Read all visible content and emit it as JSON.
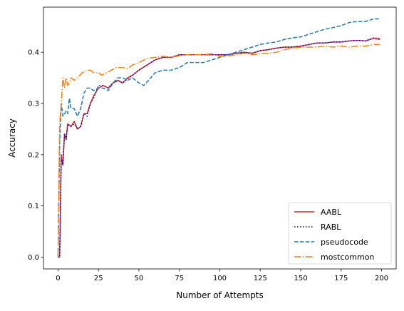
{
  "chart_data": {
    "type": "line",
    "title": "",
    "xlabel": "Number of Attempts",
    "ylabel": "Accuracy",
    "xlim": [
      -9,
      209
    ],
    "ylim": [
      -0.023,
      0.488
    ],
    "x_ticks": [
      0,
      25,
      50,
      75,
      100,
      125,
      150,
      175,
      200
    ],
    "y_ticks": [
      0.0,
      0.1,
      0.2,
      0.3,
      0.4
    ],
    "x_tick_labels": [
      "0",
      "25",
      "50",
      "75",
      "100",
      "125",
      "150",
      "175",
      "200"
    ],
    "y_tick_labels": [
      "0.0",
      "0.1",
      "0.2",
      "0.3",
      "0.4"
    ],
    "grid": false,
    "legend_position": "lower-right",
    "series": [
      {
        "name": "AABL",
        "color": "#d62728",
        "style": "solid",
        "points": [
          [
            0,
            0.0
          ],
          [
            1,
            0.0
          ],
          [
            2,
            0.2
          ],
          [
            3,
            0.18
          ],
          [
            4,
            0.24
          ],
          [
            5,
            0.23
          ],
          [
            6,
            0.26
          ],
          [
            8,
            0.255
          ],
          [
            10,
            0.265
          ],
          [
            12,
            0.25
          ],
          [
            14,
            0.255
          ],
          [
            16,
            0.28
          ],
          [
            18,
            0.28
          ],
          [
            20,
            0.3
          ],
          [
            22,
            0.315
          ],
          [
            25,
            0.33
          ],
          [
            28,
            0.335
          ],
          [
            31,
            0.33
          ],
          [
            34,
            0.34
          ],
          [
            37,
            0.345
          ],
          [
            40,
            0.34
          ],
          [
            43,
            0.35
          ],
          [
            46,
            0.355
          ],
          [
            50,
            0.365
          ],
          [
            55,
            0.375
          ],
          [
            60,
            0.385
          ],
          [
            65,
            0.39
          ],
          [
            70,
            0.39
          ],
          [
            75,
            0.395
          ],
          [
            80,
            0.395
          ],
          [
            85,
            0.395
          ],
          [
            90,
            0.395
          ],
          [
            95,
            0.395
          ],
          [
            100,
            0.395
          ],
          [
            105,
            0.395
          ],
          [
            110,
            0.398
          ],
          [
            115,
            0.4
          ],
          [
            120,
            0.398
          ],
          [
            125,
            0.403
          ],
          [
            130,
            0.405
          ],
          [
            135,
            0.408
          ],
          [
            140,
            0.41
          ],
          [
            145,
            0.41
          ],
          [
            150,
            0.412
          ],
          [
            155,
            0.415
          ],
          [
            160,
            0.418
          ],
          [
            165,
            0.418
          ],
          [
            170,
            0.42
          ],
          [
            175,
            0.42
          ],
          [
            180,
            0.422
          ],
          [
            185,
            0.423
          ],
          [
            190,
            0.422
          ],
          [
            195,
            0.427
          ],
          [
            199,
            0.425
          ]
        ]
      },
      {
        "name": "RABL",
        "color": "#0000cc",
        "style": "dotted",
        "points": [
          [
            0,
            0.0
          ],
          [
            1,
            0.0
          ],
          [
            2,
            0.19
          ],
          [
            3,
            0.18
          ],
          [
            4,
            0.24
          ],
          [
            5,
            0.23
          ],
          [
            6,
            0.26
          ],
          [
            8,
            0.255
          ],
          [
            10,
            0.26
          ],
          [
            12,
            0.25
          ],
          [
            14,
            0.255
          ],
          [
            16,
            0.28
          ],
          [
            18,
            0.275
          ],
          [
            20,
            0.3
          ],
          [
            22,
            0.31
          ],
          [
            25,
            0.335
          ],
          [
            28,
            0.335
          ],
          [
            31,
            0.33
          ],
          [
            34,
            0.34
          ],
          [
            37,
            0.345
          ],
          [
            40,
            0.34
          ],
          [
            43,
            0.348
          ],
          [
            46,
            0.355
          ],
          [
            50,
            0.365
          ],
          [
            55,
            0.375
          ],
          [
            60,
            0.385
          ],
          [
            65,
            0.39
          ],
          [
            70,
            0.39
          ],
          [
            75,
            0.395
          ],
          [
            80,
            0.395
          ],
          [
            85,
            0.395
          ],
          [
            90,
            0.395
          ],
          [
            95,
            0.395
          ],
          [
            100,
            0.395
          ],
          [
            105,
            0.395
          ],
          [
            110,
            0.398
          ],
          [
            115,
            0.4
          ],
          [
            120,
            0.398
          ],
          [
            125,
            0.403
          ],
          [
            130,
            0.405
          ],
          [
            135,
            0.408
          ],
          [
            140,
            0.41
          ],
          [
            145,
            0.41
          ],
          [
            150,
            0.412
          ],
          [
            155,
            0.415
          ],
          [
            160,
            0.418
          ],
          [
            165,
            0.418
          ],
          [
            170,
            0.42
          ],
          [
            175,
            0.42
          ],
          [
            180,
            0.422
          ],
          [
            185,
            0.423
          ],
          [
            190,
            0.422
          ],
          [
            195,
            0.428
          ],
          [
            199,
            0.427
          ]
        ]
      },
      {
        "name": "pseudocode",
        "color": "#1f77b4",
        "style": "dashed",
        "points": [
          [
            0,
            0.0
          ],
          [
            1,
            0.22
          ],
          [
            2,
            0.3
          ],
          [
            3,
            0.275
          ],
          [
            4,
            0.28
          ],
          [
            5,
            0.285
          ],
          [
            6,
            0.28
          ],
          [
            7,
            0.31
          ],
          [
            8,
            0.29
          ],
          [
            10,
            0.29
          ],
          [
            12,
            0.275
          ],
          [
            14,
            0.29
          ],
          [
            16,
            0.32
          ],
          [
            18,
            0.33
          ],
          [
            20,
            0.33
          ],
          [
            22,
            0.325
          ],
          [
            25,
            0.33
          ],
          [
            28,
            0.33
          ],
          [
            31,
            0.325
          ],
          [
            34,
            0.34
          ],
          [
            37,
            0.35
          ],
          [
            40,
            0.35
          ],
          [
            43,
            0.345
          ],
          [
            46,
            0.35
          ],
          [
            50,
            0.34
          ],
          [
            53,
            0.335
          ],
          [
            56,
            0.345
          ],
          [
            60,
            0.36
          ],
          [
            65,
            0.365
          ],
          [
            70,
            0.365
          ],
          [
            75,
            0.37
          ],
          [
            80,
            0.38
          ],
          [
            85,
            0.38
          ],
          [
            90,
            0.38
          ],
          [
            95,
            0.385
          ],
          [
            100,
            0.39
          ],
          [
            105,
            0.395
          ],
          [
            110,
            0.4
          ],
          [
            115,
            0.405
          ],
          [
            120,
            0.41
          ],
          [
            125,
            0.415
          ],
          [
            130,
            0.418
          ],
          [
            135,
            0.42
          ],
          [
            140,
            0.425
          ],
          [
            145,
            0.428
          ],
          [
            150,
            0.43
          ],
          [
            155,
            0.435
          ],
          [
            160,
            0.44
          ],
          [
            165,
            0.445
          ],
          [
            170,
            0.448
          ],
          [
            175,
            0.452
          ],
          [
            180,
            0.458
          ],
          [
            185,
            0.46
          ],
          [
            190,
            0.46
          ],
          [
            195,
            0.465
          ],
          [
            199,
            0.465
          ]
        ]
      },
      {
        "name": "mostcommon",
        "color": "#ff7f0e",
        "style": "dashdot",
        "points": [
          [
            0,
            0.0
          ],
          [
            1,
            0.26
          ],
          [
            2,
            0.3
          ],
          [
            3,
            0.35
          ],
          [
            4,
            0.33
          ],
          [
            5,
            0.35
          ],
          [
            6,
            0.335
          ],
          [
            7,
            0.34
          ],
          [
            8,
            0.35
          ],
          [
            10,
            0.345
          ],
          [
            12,
            0.35
          ],
          [
            15,
            0.36
          ],
          [
            18,
            0.365
          ],
          [
            20,
            0.365
          ],
          [
            22,
            0.36
          ],
          [
            25,
            0.36
          ],
          [
            27,
            0.355
          ],
          [
            30,
            0.36
          ],
          [
            33,
            0.365
          ],
          [
            36,
            0.37
          ],
          [
            40,
            0.37
          ],
          [
            43,
            0.368
          ],
          [
            46,
            0.375
          ],
          [
            50,
            0.38
          ],
          [
            55,
            0.388
          ],
          [
            60,
            0.39
          ],
          [
            65,
            0.392
          ],
          [
            70,
            0.39
          ],
          [
            75,
            0.393
          ],
          [
            80,
            0.395
          ],
          [
            85,
            0.395
          ],
          [
            90,
            0.395
          ],
          [
            95,
            0.397
          ],
          [
            100,
            0.392
          ],
          [
            105,
            0.393
          ],
          [
            110,
            0.395
          ],
          [
            115,
            0.398
          ],
          [
            120,
            0.395
          ],
          [
            125,
            0.397
          ],
          [
            130,
            0.398
          ],
          [
            135,
            0.4
          ],
          [
            140,
            0.405
          ],
          [
            145,
            0.408
          ],
          [
            150,
            0.41
          ],
          [
            155,
            0.41
          ],
          [
            160,
            0.41
          ],
          [
            165,
            0.412
          ],
          [
            170,
            0.41
          ],
          [
            175,
            0.412
          ],
          [
            180,
            0.41
          ],
          [
            185,
            0.412
          ],
          [
            190,
            0.412
          ],
          [
            195,
            0.415
          ],
          [
            199,
            0.415
          ]
        ]
      }
    ]
  }
}
